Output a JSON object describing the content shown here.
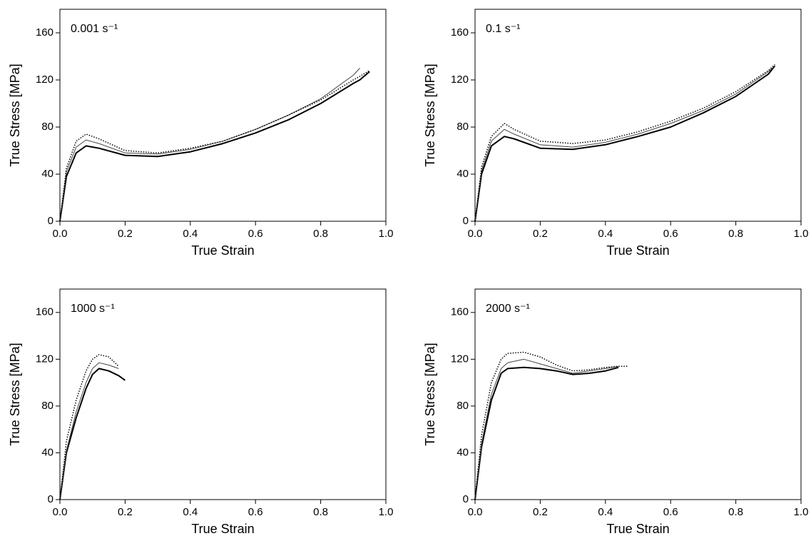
{
  "chart_data": [
    {
      "type": "line",
      "annotation": "0.001 s⁻¹",
      "xlabel": "True Strain",
      "ylabel": "True Stress [MPa]",
      "xlim": [
        0,
        1
      ],
      "ylim": [
        0,
        180
      ],
      "xticks": [
        {
          "value": 0,
          "label": "0.0"
        },
        0.2,
        0.4,
        0.6,
        0.8,
        {
          "value": 1,
          "label": "1.0"
        }
      ],
      "yticks": [
        0,
        40,
        80,
        120,
        160
      ],
      "x": [
        0,
        0.02,
        0.05,
        0.08,
        0.12,
        0.2,
        0.3,
        0.4,
        0.5,
        0.6,
        0.7,
        0.8,
        0.9,
        0.92,
        0.95
      ],
      "series": [
        {
          "color": "#000000",
          "line_width": 2,
          "dashed": false,
          "values": [
            0,
            38,
            58,
            64,
            62,
            56,
            55,
            59,
            66,
            75,
            86,
            100,
            117,
            120,
            127
          ]
        },
        {
          "color": "#444444",
          "line_width": 1,
          "dashed": false,
          "values": [
            0,
            42,
            63,
            69,
            66,
            58,
            57,
            61,
            68,
            78,
            90,
            104,
            124,
            130,
            null
          ]
        },
        {
          "color": "#000000",
          "line_width": 1.5,
          "dashed": true,
          "values": [
            0,
            45,
            68,
            74,
            70,
            60,
            58,
            62,
            68,
            78,
            90,
            103,
            120,
            123,
            128
          ]
        }
      ]
    },
    {
      "type": "line",
      "annotation": "0.1 s⁻¹",
      "xlabel": "True Strain",
      "ylabel": "True Stress [MPa]",
      "xlim": [
        0,
        1
      ],
      "ylim": [
        0,
        180
      ],
      "xticks": [
        {
          "value": 0,
          "label": "0.0"
        },
        0.2,
        0.4,
        0.6,
        0.8,
        {
          "value": 1,
          "label": "1.0"
        }
      ],
      "yticks": [
        0,
        40,
        80,
        120,
        160
      ],
      "x": [
        0,
        0.02,
        0.05,
        0.09,
        0.12,
        0.2,
        0.3,
        0.4,
        0.5,
        0.6,
        0.7,
        0.8,
        0.9,
        0.92
      ],
      "series": [
        {
          "color": "#000000",
          "line_width": 2,
          "dashed": false,
          "values": [
            0,
            40,
            64,
            72,
            70,
            62,
            61,
            65,
            72,
            80,
            92,
            106,
            125,
            132
          ]
        },
        {
          "color": "#444444",
          "line_width": 1,
          "dashed": false,
          "values": [
            0,
            43,
            68,
            78,
            74,
            65,
            63,
            67,
            74,
            83,
            94,
            108,
            127,
            132
          ]
        },
        {
          "color": "#000000",
          "line_width": 1.5,
          "dashed": true,
          "values": [
            0,
            46,
            72,
            83,
            78,
            68,
            66,
            69,
            76,
            85,
            96,
            110,
            128,
            133
          ]
        }
      ]
    },
    {
      "type": "line",
      "annotation": "1000 s⁻¹",
      "xlabel": "True Strain",
      "ylabel": "True Stress [MPa]",
      "xlim": [
        0,
        1
      ],
      "ylim": [
        0,
        180
      ],
      "xticks": [
        {
          "value": 0,
          "label": "0.0"
        },
        0.2,
        0.4,
        0.6,
        0.8,
        {
          "value": 1,
          "label": "1.0"
        }
      ],
      "yticks": [
        0,
        40,
        80,
        120,
        160
      ],
      "x": [
        0,
        0.02,
        0.05,
        0.08,
        0.1,
        0.12,
        0.15,
        0.18,
        0.2
      ],
      "series": [
        {
          "color": "#000000",
          "line_width": 2,
          "dashed": false,
          "values": [
            0,
            40,
            70,
            95,
            107,
            112,
            110,
            106,
            102
          ]
        },
        {
          "color": "#444444",
          "line_width": 1,
          "dashed": false,
          "values": [
            0,
            42,
            75,
            100,
            112,
            117,
            115,
            112,
            null
          ]
        },
        {
          "color": "#000000",
          "line_width": 1.5,
          "dashed": true,
          "values": [
            0,
            50,
            85,
            110,
            120,
            124,
            122,
            114,
            null
          ]
        }
      ]
    },
    {
      "type": "line",
      "annotation": "2000 s⁻¹",
      "xlabel": "True Strain",
      "ylabel": "True Stress [MPa]",
      "xlim": [
        0,
        1
      ],
      "ylim": [
        0,
        180
      ],
      "xticks": [
        {
          "value": 0,
          "label": "0.0"
        },
        0.2,
        0.4,
        0.6,
        0.8,
        {
          "value": 1,
          "label": "1.0"
        }
      ],
      "yticks": [
        0,
        40,
        80,
        120,
        160
      ],
      "x": [
        0,
        0.02,
        0.05,
        0.08,
        0.1,
        0.15,
        0.2,
        0.25,
        0.3,
        0.35,
        0.4,
        0.44,
        0.47
      ],
      "series": [
        {
          "color": "#000000",
          "line_width": 2,
          "dashed": false,
          "values": [
            0,
            45,
            85,
            108,
            112,
            113,
            112,
            110,
            107,
            108,
            110,
            113,
            null
          ]
        },
        {
          "color": "#444444",
          "line_width": 1,
          "dashed": false,
          "values": [
            0,
            48,
            90,
            112,
            117,
            120,
            116,
            112,
            108,
            110,
            112,
            114,
            null
          ]
        },
        {
          "color": "#000000",
          "line_width": 1.5,
          "dashed": true,
          "values": [
            0,
            55,
            100,
            120,
            125,
            126,
            122,
            115,
            110,
            111,
            113,
            114,
            114
          ]
        }
      ]
    }
  ]
}
